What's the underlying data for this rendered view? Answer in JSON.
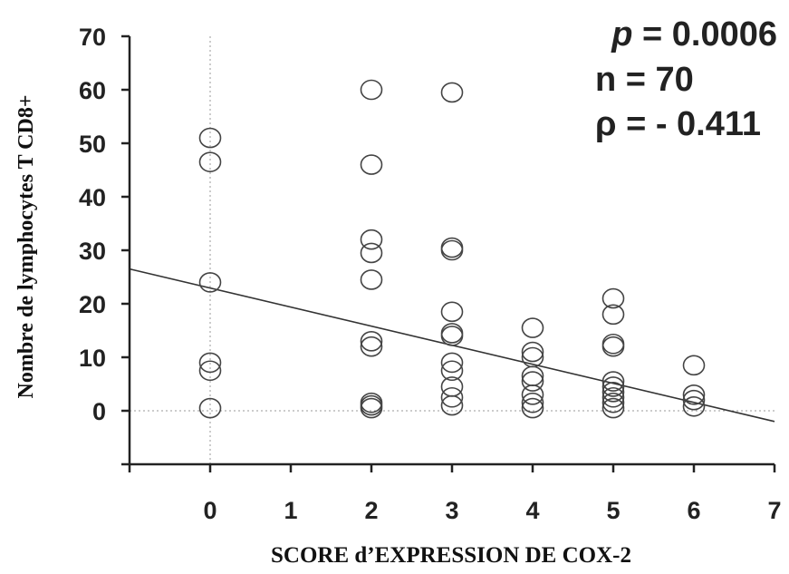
{
  "chart_data": {
    "type": "scatter",
    "title": "",
    "xlabel": "SCORE d’EXPRESSION DE COX-2",
    "ylabel": "Nombre de lymphocytes T CD8+",
    "xlim": [
      -1,
      7
    ],
    "ylim": [
      -10,
      70
    ],
    "xticks": [
      0,
      1,
      2,
      3,
      4,
      5,
      6,
      7
    ],
    "yticks": [
      0,
      10,
      20,
      30,
      40,
      50,
      60,
      70
    ],
    "grid": false,
    "reference_lines": {
      "x": 0,
      "y": 0,
      "style": "dotted"
    },
    "points": [
      {
        "x": 0,
        "y": 51
      },
      {
        "x": 0,
        "y": 46.5
      },
      {
        "x": 0,
        "y": 24
      },
      {
        "x": 0,
        "y": 9
      },
      {
        "x": 0,
        "y": 7.5
      },
      {
        "x": 0,
        "y": 0.5
      },
      {
        "x": 2,
        "y": 60
      },
      {
        "x": 2,
        "y": 46
      },
      {
        "x": 2,
        "y": 32
      },
      {
        "x": 2,
        "y": 29.5
      },
      {
        "x": 2,
        "y": 24.5
      },
      {
        "x": 2,
        "y": 13
      },
      {
        "x": 2,
        "y": 12
      },
      {
        "x": 2,
        "y": 1.5
      },
      {
        "x": 2,
        "y": 1
      },
      {
        "x": 2,
        "y": 0.5
      },
      {
        "x": 3,
        "y": 59.5
      },
      {
        "x": 3,
        "y": 30.5
      },
      {
        "x": 3,
        "y": 30
      },
      {
        "x": 3,
        "y": 18.5
      },
      {
        "x": 3,
        "y": 14.5
      },
      {
        "x": 3,
        "y": 14
      },
      {
        "x": 3,
        "y": 9
      },
      {
        "x": 3,
        "y": 7.5
      },
      {
        "x": 3,
        "y": 4.5
      },
      {
        "x": 3,
        "y": 2.5
      },
      {
        "x": 3,
        "y": 1
      },
      {
        "x": 4,
        "y": 15.5
      },
      {
        "x": 4,
        "y": 11
      },
      {
        "x": 4,
        "y": 10
      },
      {
        "x": 4,
        "y": 6.5
      },
      {
        "x": 4,
        "y": 5.5
      },
      {
        "x": 4,
        "y": 3
      },
      {
        "x": 4,
        "y": 1.5
      },
      {
        "x": 4,
        "y": 0.5
      },
      {
        "x": 5,
        "y": 21
      },
      {
        "x": 5,
        "y": 18
      },
      {
        "x": 5,
        "y": 12.5
      },
      {
        "x": 5,
        "y": 12
      },
      {
        "x": 5,
        "y": 5.5
      },
      {
        "x": 5,
        "y": 4.5
      },
      {
        "x": 5,
        "y": 3.5
      },
      {
        "x": 5,
        "y": 2.5
      },
      {
        "x": 5,
        "y": 1.5
      },
      {
        "x": 5,
        "y": 0.5
      },
      {
        "x": 6,
        "y": 8.5
      },
      {
        "x": 6,
        "y": 3
      },
      {
        "x": 6,
        "y": 2
      },
      {
        "x": 6,
        "y": 0.8
      }
    ],
    "regression_line": {
      "x": [
        -1,
        7
      ],
      "y": [
        26.5,
        -2
      ]
    },
    "annotations": [
      {
        "prefix": "p",
        "text": " = 0.0006"
      },
      {
        "prefix": "",
        "text": "n = 70"
      },
      {
        "prefix": "",
        "text": "ρ = - 0.411"
      }
    ]
  }
}
